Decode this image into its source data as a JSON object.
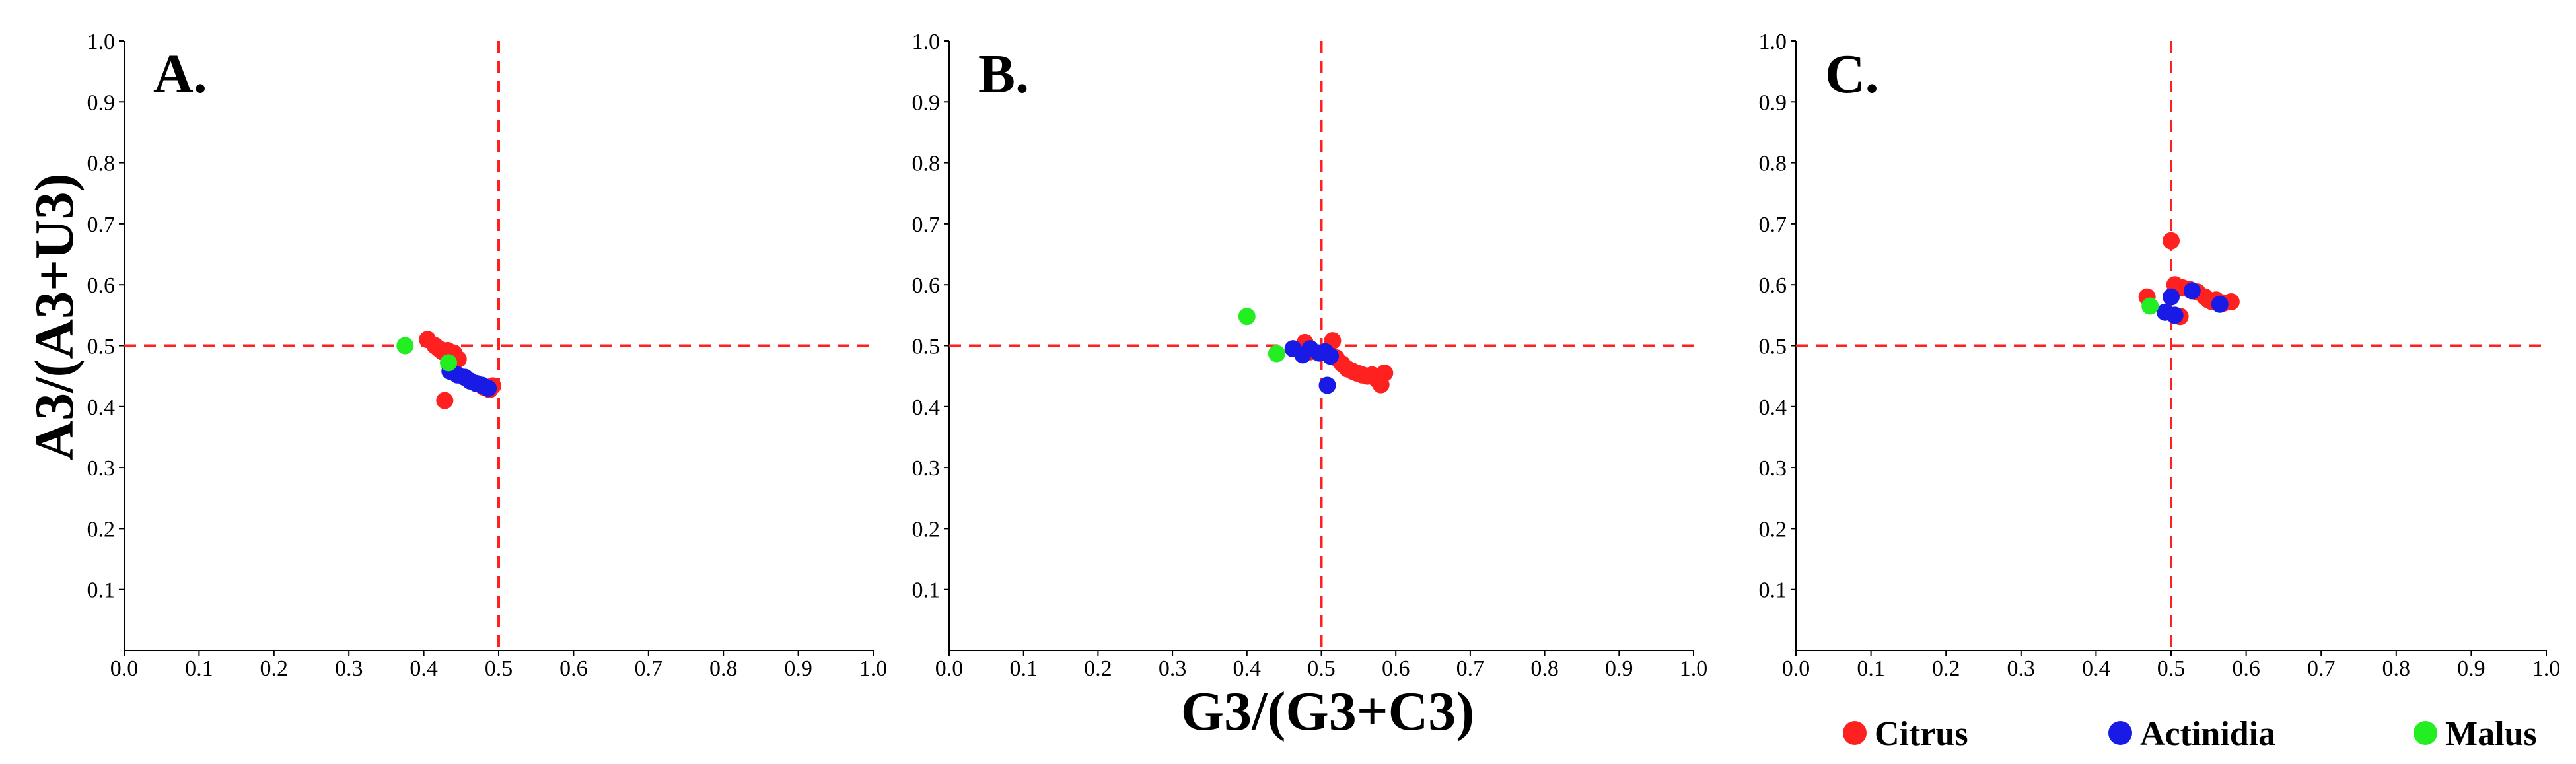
{
  "figure": {
    "ylabel": "A3/(A3+U3)",
    "xlabel": "G3/(G3+C3)",
    "legend": [
      {
        "label": "Citrus",
        "color": "#ff2020"
      },
      {
        "label": "Actinidia",
        "color": "#1a1ae6"
      },
      {
        "label": "Malus",
        "color": "#22ee22"
      }
    ]
  },
  "chart_data": [
    {
      "type": "scatter",
      "title": "A.",
      "xlim": [
        0.0,
        1.0
      ],
      "ylim": [
        0.0,
        1.0
      ],
      "xticks": [
        "0.0",
        "0.1",
        "0.2",
        "0.3",
        "0.4",
        "0.5",
        "0.6",
        "0.7",
        "0.8",
        "0.9",
        "1.0"
      ],
      "yticks": [
        "0.1",
        "0.2",
        "0.3",
        "0.4",
        "0.5",
        "0.6",
        "0.7",
        "0.8",
        "0.9",
        "1.0"
      ],
      "reference_lines": {
        "x": 0.5,
        "y": 0.5,
        "style": "red dashed"
      },
      "series": [
        {
          "name": "Citrus",
          "color": "#ff2020",
          "points": [
            [
              0.405,
              0.51
            ],
            [
              0.415,
              0.5
            ],
            [
              0.42,
              0.495
            ],
            [
              0.425,
              0.49
            ],
            [
              0.432,
              0.492
            ],
            [
              0.44,
              0.488
            ],
            [
              0.446,
              0.478
            ],
            [
              0.428,
              0.41
            ],
            [
              0.438,
              0.47
            ],
            [
              0.48,
              0.432
            ],
            [
              0.488,
              0.428
            ],
            [
              0.492,
              0.434
            ]
          ]
        },
        {
          "name": "Actinidia",
          "color": "#1a1ae6",
          "points": [
            [
              0.435,
              0.458
            ],
            [
              0.445,
              0.452
            ],
            [
              0.455,
              0.448
            ],
            [
              0.462,
              0.442
            ],
            [
              0.47,
              0.438
            ],
            [
              0.478,
              0.435
            ],
            [
              0.486,
              0.43
            ]
          ]
        },
        {
          "name": "Malus",
          "color": "#22ee22",
          "points": [
            [
              0.375,
              0.5
            ],
            [
              0.433,
              0.472
            ]
          ]
        }
      ]
    },
    {
      "type": "scatter",
      "title": "B.",
      "xlim": [
        0.0,
        1.0
      ],
      "ylim": [
        0.0,
        1.0
      ],
      "xticks": [
        "0.0",
        "0.1",
        "0.2",
        "0.3",
        "0.4",
        "0.5",
        "0.6",
        "0.7",
        "0.8",
        "0.9",
        "1.0"
      ],
      "yticks": [
        "0.1",
        "0.2",
        "0.3",
        "0.4",
        "0.5",
        "0.6",
        "0.7",
        "0.8",
        "0.9",
        "1.0"
      ],
      "reference_lines": {
        "x": 0.5,
        "y": 0.5,
        "style": "red dashed"
      },
      "series": [
        {
          "name": "Citrus",
          "color": "#ff2020",
          "points": [
            [
              0.47,
              0.495
            ],
            [
              0.478,
              0.505
            ],
            [
              0.485,
              0.49
            ],
            [
              0.515,
              0.508
            ],
            [
              0.52,
              0.48
            ],
            [
              0.528,
              0.47
            ],
            [
              0.535,
              0.462
            ],
            [
              0.542,
              0.458
            ],
            [
              0.548,
              0.455
            ],
            [
              0.555,
              0.452
            ],
            [
              0.562,
              0.45
            ],
            [
              0.568,
              0.452
            ],
            [
              0.575,
              0.444
            ],
            [
              0.58,
              0.436
            ],
            [
              0.585,
              0.455
            ]
          ]
        },
        {
          "name": "Actinidia",
          "color": "#1a1ae6",
          "points": [
            [
              0.462,
              0.495
            ],
            [
              0.475,
              0.485
            ],
            [
              0.485,
              0.495
            ],
            [
              0.497,
              0.488
            ],
            [
              0.505,
              0.49
            ],
            [
              0.512,
              0.483
            ],
            [
              0.508,
              0.435
            ]
          ]
        },
        {
          "name": "Malus",
          "color": "#22ee22",
          "points": [
            [
              0.4,
              0.548
            ],
            [
              0.44,
              0.487
            ]
          ]
        }
      ]
    },
    {
      "type": "scatter",
      "title": "C.",
      "xlim": [
        0.0,
        1.0
      ],
      "ylim": [
        0.0,
        1.0
      ],
      "xticks": [
        "0.0",
        "0.1",
        "0.2",
        "0.3",
        "0.4",
        "0.5",
        "0.6",
        "0.7",
        "0.8",
        "0.9",
        "1.0"
      ],
      "yticks": [
        "0.1",
        "0.2",
        "0.3",
        "0.4",
        "0.5",
        "0.6",
        "0.7",
        "0.8",
        "0.9",
        "1.0"
      ],
      "reference_lines": {
        "x": 0.5,
        "y": 0.5,
        "style": "red dashed"
      },
      "series": [
        {
          "name": "Citrus",
          "color": "#ff2020",
          "points": [
            [
              0.468,
              0.58
            ],
            [
              0.5,
              0.672
            ],
            [
              0.505,
              0.6
            ],
            [
              0.515,
              0.595
            ],
            [
              0.525,
              0.592
            ],
            [
              0.535,
              0.588
            ],
            [
              0.545,
              0.58
            ],
            [
              0.55,
              0.575
            ],
            [
              0.555,
              0.572
            ],
            [
              0.56,
              0.575
            ],
            [
              0.57,
              0.57
            ],
            [
              0.58,
              0.572
            ],
            [
              0.512,
              0.548
            ]
          ]
        },
        {
          "name": "Actinidia",
          "color": "#1a1ae6",
          "points": [
            [
              0.492,
              0.555
            ],
            [
              0.5,
              0.58
            ],
            [
              0.505,
              0.55
            ],
            [
              0.528,
              0.59
            ],
            [
              0.565,
              0.568
            ]
          ]
        },
        {
          "name": "Malus",
          "color": "#22ee22",
          "points": [
            [
              0.472,
              0.565
            ]
          ]
        }
      ]
    }
  ]
}
